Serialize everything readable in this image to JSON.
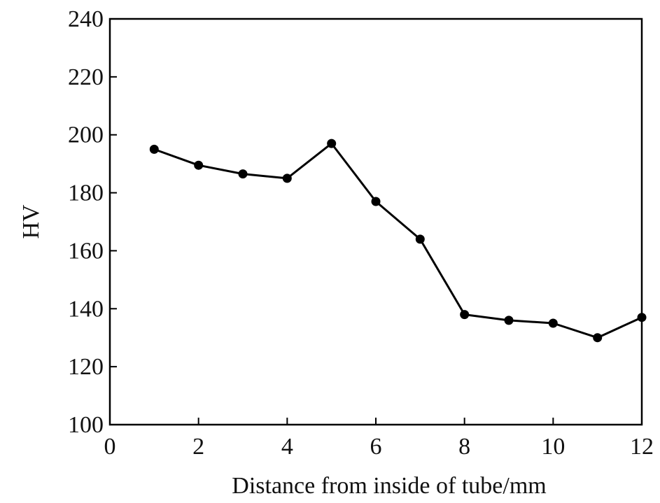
{
  "chart_data": {
    "type": "line",
    "title": "",
    "xlabel": "Distance from inside of tube/mm",
    "ylabel": "HV",
    "xlim": [
      0,
      12
    ],
    "ylim": [
      100,
      240
    ],
    "xticks": [
      0,
      2,
      4,
      6,
      8,
      10,
      12
    ],
    "yticks": [
      100,
      120,
      140,
      160,
      180,
      200,
      220,
      240
    ],
    "grid": false,
    "legend": "none",
    "series": [
      {
        "x": [
          1,
          2,
          3,
          4,
          5,
          6,
          7,
          8,
          9,
          10,
          11,
          12
        ],
        "y": [
          195,
          189.5,
          186.5,
          185,
          197,
          177,
          164,
          138,
          136,
          135,
          130,
          137
        ],
        "marker": "circle",
        "color": "#000000"
      }
    ]
  }
}
